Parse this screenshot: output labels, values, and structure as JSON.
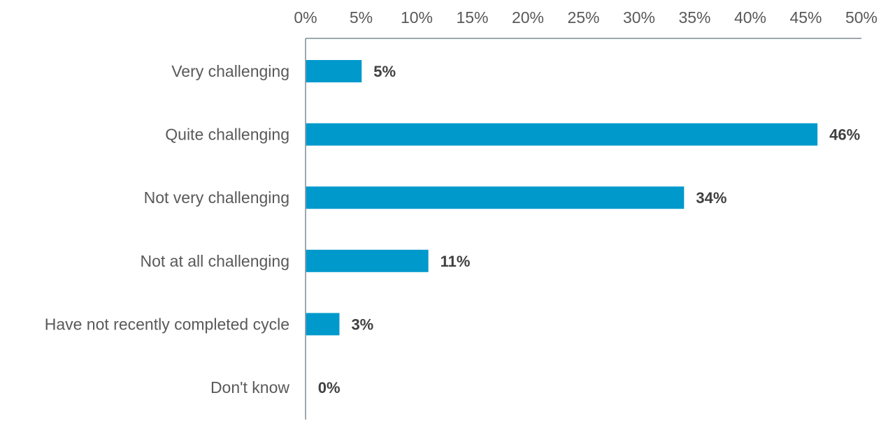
{
  "chart_data": {
    "type": "bar",
    "orientation": "horizontal",
    "categories": [
      "Very challenging",
      "Quite challenging",
      "Not very challenging",
      "Not at all challenging",
      "Have not recently completed cycle",
      "Don't know"
    ],
    "values": [
      5,
      46,
      34,
      11,
      3,
      0
    ],
    "value_labels": [
      "5%",
      "46%",
      "34%",
      "11%",
      "3%",
      "0%"
    ],
    "x_ticks": [
      "0%",
      "5%",
      "10%",
      "15%",
      "20%",
      "25%",
      "30%",
      "35%",
      "40%",
      "45%",
      "50%"
    ],
    "xlim": [
      0,
      50
    ],
    "x_axis_position": "top",
    "grid": false,
    "legend": "none",
    "title": "",
    "xlabel": "",
    "ylabel": "",
    "bar_color": "#0099CC",
    "axis_color": "#7F8A94"
  }
}
